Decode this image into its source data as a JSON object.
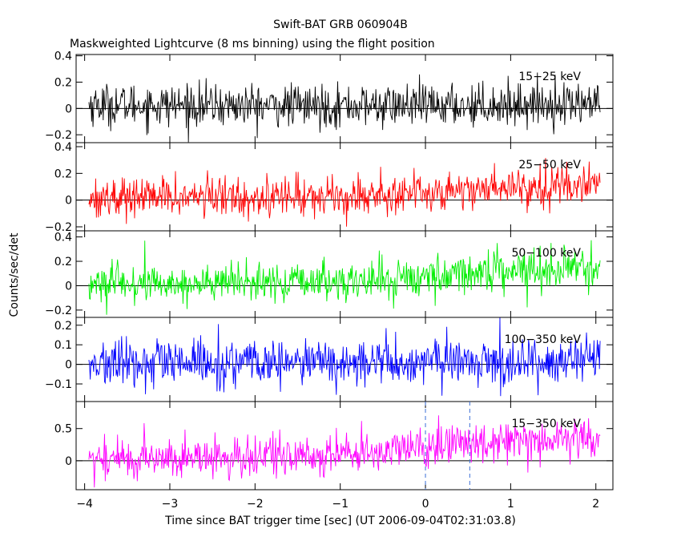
{
  "chart_data": {
    "type": "line",
    "title": "Swift-BAT GRB 060904B",
    "subtitle": "Maskweighted Lightcurve (8 ms binning) using the flight position",
    "xlabel": "Time since BAT trigger time [sec] (UT 2006-09-04T02:31:03.8)",
    "ylabel": "Counts/sec/det",
    "xlim": [
      -4.1,
      2.2
    ],
    "x_ticks": [
      {
        "value": -4,
        "label": "−4"
      },
      {
        "value": -3,
        "label": "−3"
      },
      {
        "value": -2,
        "label": "−2"
      },
      {
        "value": -1,
        "label": "−1"
      },
      {
        "value": 0,
        "label": "0"
      },
      {
        "value": 1,
        "label": "1"
      },
      {
        "value": 2,
        "label": "2"
      }
    ],
    "bin_width_sec": 0.008,
    "t_start": -3.95,
    "t_end": 2.05,
    "markers": [
      {
        "x": 0.0,
        "style": "dashed",
        "color": "#3b6fd6",
        "from_panel": 4
      },
      {
        "x": 0.52,
        "style": "dashed",
        "color": "#3b6fd6",
        "from_panel": 4
      }
    ],
    "panels": [
      {
        "band": "15−25 keV",
        "color": "#000000",
        "ylim": [
          -0.26,
          0.41
        ],
        "y_ticks": [
          {
            "value": -0.2,
            "label": "−0.2"
          },
          {
            "value": 0,
            "label": "0"
          },
          {
            "value": 0.2,
            "label": "0.2"
          },
          {
            "value": 0.4,
            "label": "0.4"
          }
        ],
        "noise_sigma": 0.08,
        "trend": [
          [
            -3.95,
            0.03
          ],
          [
            -2.0,
            0.02
          ],
          [
            0.0,
            0.02
          ],
          [
            2.05,
            0.04
          ]
        ]
      },
      {
        "band": "25−50 keV",
        "color": "#ff0000",
        "ylim": [
          -0.23,
          0.43
        ],
        "y_ticks": [
          {
            "value": -0.2,
            "label": "−0.2"
          },
          {
            "value": 0,
            "label": "0"
          },
          {
            "value": 0.2,
            "label": "0.2"
          },
          {
            "value": 0.4,
            "label": "0.4"
          }
        ],
        "noise_sigma": 0.075,
        "trend": [
          [
            -3.95,
            0.02
          ],
          [
            -1.0,
            0.03
          ],
          [
            0.0,
            0.06
          ],
          [
            1.0,
            0.1
          ],
          [
            2.05,
            0.12
          ]
        ]
      },
      {
        "band": "50−100 keV",
        "color": "#00ee00",
        "ylim": [
          -0.26,
          0.45
        ],
        "y_ticks": [
          {
            "value": -0.2,
            "label": "−0.2"
          },
          {
            "value": 0,
            "label": "0"
          },
          {
            "value": 0.2,
            "label": "0.2"
          },
          {
            "value": 0.4,
            "label": "0.4"
          }
        ],
        "noise_sigma": 0.08,
        "trend": [
          [
            -3.95,
            0.01
          ],
          [
            -1.0,
            0.03
          ],
          [
            0.0,
            0.07
          ],
          [
            1.0,
            0.14
          ],
          [
            2.05,
            0.14
          ]
        ]
      },
      {
        "band": "100−350 keV",
        "color": "#0000ff",
        "ylim": [
          -0.19,
          0.24
        ],
        "y_ticks": [
          {
            "value": -0.1,
            "label": "−0.1"
          },
          {
            "value": 0,
            "label": "0"
          },
          {
            "value": 0.1,
            "label": "0.1"
          },
          {
            "value": 0.2,
            "label": "0.2"
          }
        ],
        "noise_sigma": 0.06,
        "trend": [
          [
            -3.95,
            0.0
          ],
          [
            0.0,
            0.01
          ],
          [
            2.05,
            0.02
          ]
        ]
      },
      {
        "band": "15−350 keV",
        "color": "#ff00ff",
        "ylim": [
          -0.45,
          0.92
        ],
        "y_ticks": [
          {
            "value": 0,
            "label": "0"
          },
          {
            "value": 0.5,
            "label": "0.5"
          }
        ],
        "noise_sigma": 0.16,
        "trend": [
          [
            -3.95,
            0.03
          ],
          [
            -2.0,
            0.05
          ],
          [
            -1.0,
            0.1
          ],
          [
            0.0,
            0.2
          ],
          [
            1.0,
            0.35
          ],
          [
            2.05,
            0.35
          ]
        ]
      }
    ]
  }
}
